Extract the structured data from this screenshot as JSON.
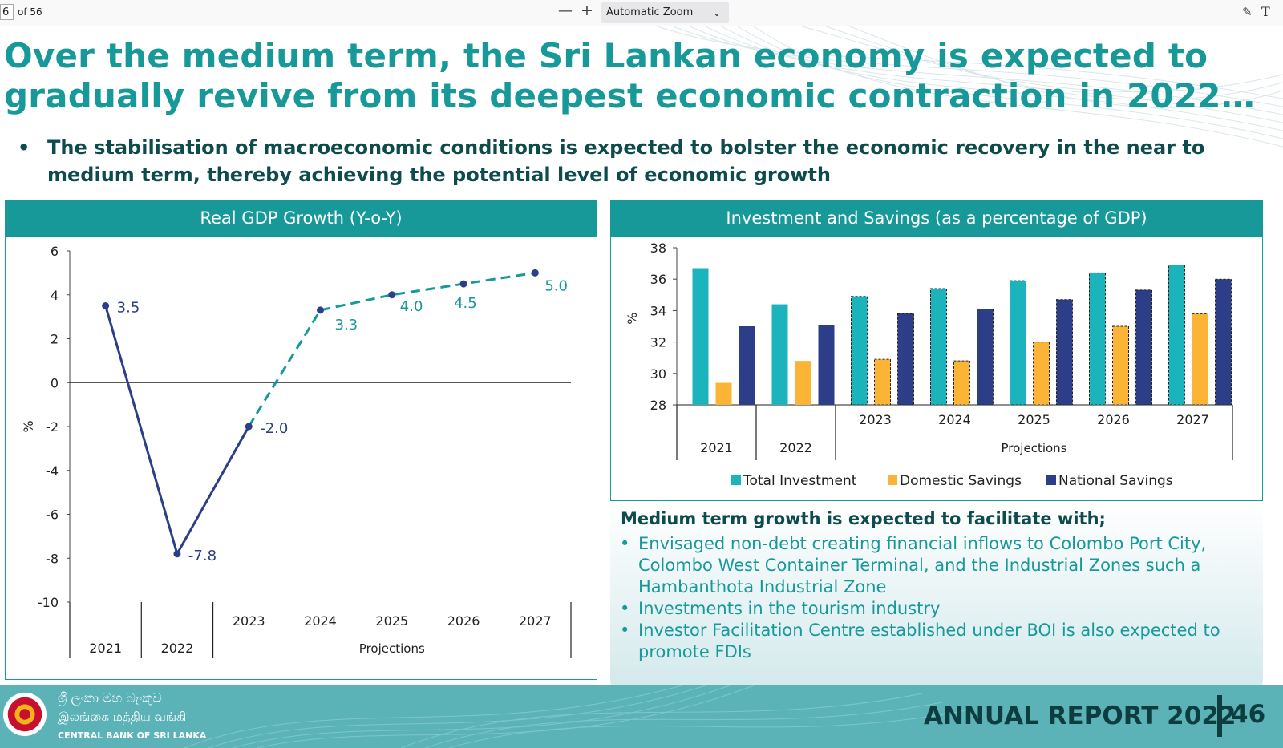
{
  "toolbar": {
    "page_number": "6",
    "page_count": "of 56",
    "zoom_out_label": "—",
    "zoom_in_label": "+",
    "zoom_value": "Automatic Zoom",
    "chevron": "⌄",
    "draw_icon": "✎",
    "text_icon": "T"
  },
  "slide": {
    "headline_line1": "Over the medium term, the Sri Lankan economy is expected to",
    "headline_line2": "gradually revive from its deepest economic contraction in 2022…",
    "bullet_symbol": "•",
    "bullet_text": "The stabilisation of macroeconomic conditions is expected to bolster the economic recovery in the near to medium term, thereby achieving the potential level of economic growth",
    "colors": {
      "teal": "#17999a",
      "dark_teal": "#0d4b4d",
      "navy": "#2b3e87",
      "orange": "#fbb436",
      "cyan": "#1bb4bc"
    }
  },
  "gdp_panel": {
    "title": "Real GDP Growth (Y-o-Y)"
  },
  "inv_panel": {
    "title": "Investment and Savings (as a percentage of GDP)"
  },
  "chart_data": [
    {
      "type": "line",
      "title": "Real GDP Growth (Y-o-Y)",
      "ylabel": "%",
      "ylim": [
        -10,
        6
      ],
      "yticks": [
        6,
        4,
        2,
        0,
        -2,
        -4,
        -6,
        -8,
        -10
      ],
      "x": [
        "2021",
        "2022",
        "2023",
        "2024",
        "2025",
        "2026",
        "2027"
      ],
      "group_label": "Projections",
      "series": [
        {
          "values": [
            3.5,
            -7.8,
            -2.0,
            3.3,
            4.0,
            4.5,
            5.0
          ],
          "style_actual_until_index": 2
        }
      ],
      "data_labels": [
        "3.5",
        "-7.8",
        "-2.0",
        "3.3",
        "4.0",
        "4.5",
        "5.0"
      ]
    },
    {
      "type": "bar",
      "title": "Investment and Savings (as a percentage of GDP)",
      "ylabel": "%",
      "ylim": [
        28,
        38
      ],
      "yticks": [
        38,
        36,
        34,
        32,
        30,
        28
      ],
      "categories": [
        "2021",
        "2022",
        "2023",
        "2024",
        "2025",
        "2026",
        "2027"
      ],
      "group_label": "Projections",
      "legend_position": "bottom",
      "series": [
        {
          "name": "Total Investment",
          "color": "#1bb4bc",
          "values": [
            36.7,
            34.4,
            34.9,
            35.4,
            35.9,
            36.4,
            36.9
          ]
        },
        {
          "name": "Domestic Savings",
          "color": "#fbb436",
          "values": [
            29.4,
            30.8,
            30.9,
            30.8,
            32.0,
            33.0,
            33.8
          ]
        },
        {
          "name": "National Savings",
          "color": "#2b3e87",
          "values": [
            33.0,
            33.1,
            33.8,
            34.1,
            34.7,
            35.3,
            36.0
          ]
        }
      ]
    }
  ],
  "growth": {
    "title": "Medium term growth is expected to facilitate with;",
    "bullet_symbol": "•",
    "items": [
      "Envisaged non-debt creating financial inflows to Colombo Port City, Colombo West Container Terminal, and the Industrial Zones such a Hambanthota Industrial Zone",
      "Investments in the tourism industry",
      "Investor Facilitation Centre established under BOI is also expected to promote FDIs"
    ]
  },
  "footer": {
    "bank_sinhala": "ශ්‍රී ලංකා මහ බැංකුව",
    "bank_tamil": "இலங்கை மத்திய வங்கி",
    "bank_english": "CENTRAL BANK OF SRI LANKA",
    "annual_report": "ANNUAL REPORT 2022",
    "page_number": "46"
  }
}
